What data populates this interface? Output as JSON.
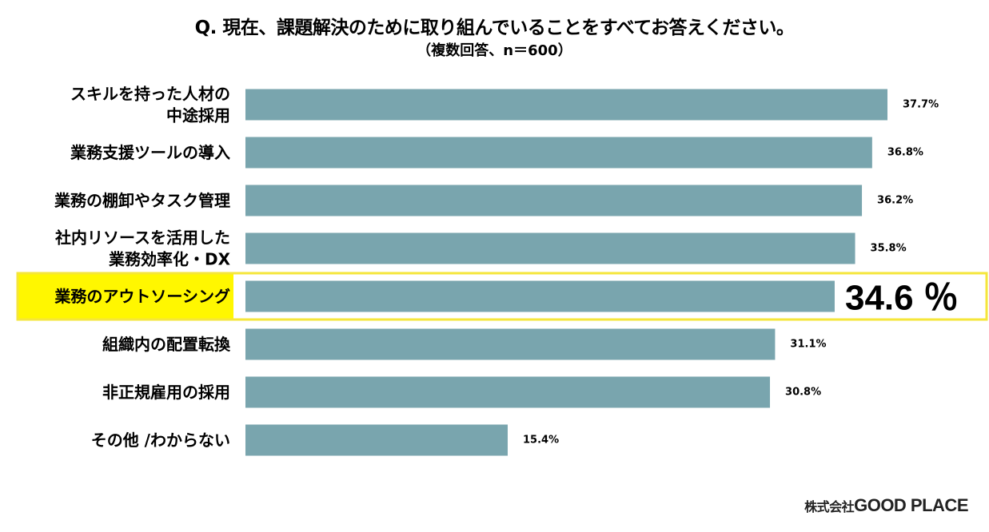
{
  "header": {
    "title": "Q. 現在、課題解決のために取り組んでいることをすべてお答えください。",
    "subtitle": "（複数回答、n＝600）"
  },
  "footer": {
    "company_prefix": "株式会社",
    "company_name": "GOOD PLACE"
  },
  "colors": {
    "bar": "#79a5ae",
    "highlight_border": "#f5e63a",
    "highlight_label_bg": "#fff700"
  },
  "chart_data": {
    "type": "bar",
    "orientation": "horizontal",
    "categories": [
      [
        "スキルを持った人材の",
        "中途採用"
      ],
      [
        "業務支援ツールの導入"
      ],
      [
        "業務の棚卸やタスク管理"
      ],
      [
        "社内リソースを活用した",
        "業務効率化・DX"
      ],
      [
        "業務のアウトソーシング"
      ],
      [
        "組織内の配置転換"
      ],
      [
        "非正規雇用の採用"
      ],
      [
        "その他 /わからない"
      ]
    ],
    "values": [
      37.7,
      36.8,
      36.2,
      35.8,
      34.6,
      31.1,
      30.8,
      15.4
    ],
    "value_labels": [
      "37.7%",
      "36.8%",
      "36.2%",
      "35.8%",
      "34.6 ％",
      "31.1%",
      "30.8%",
      "15.4%"
    ],
    "highlight_index": 4,
    "unit": "%"
  }
}
